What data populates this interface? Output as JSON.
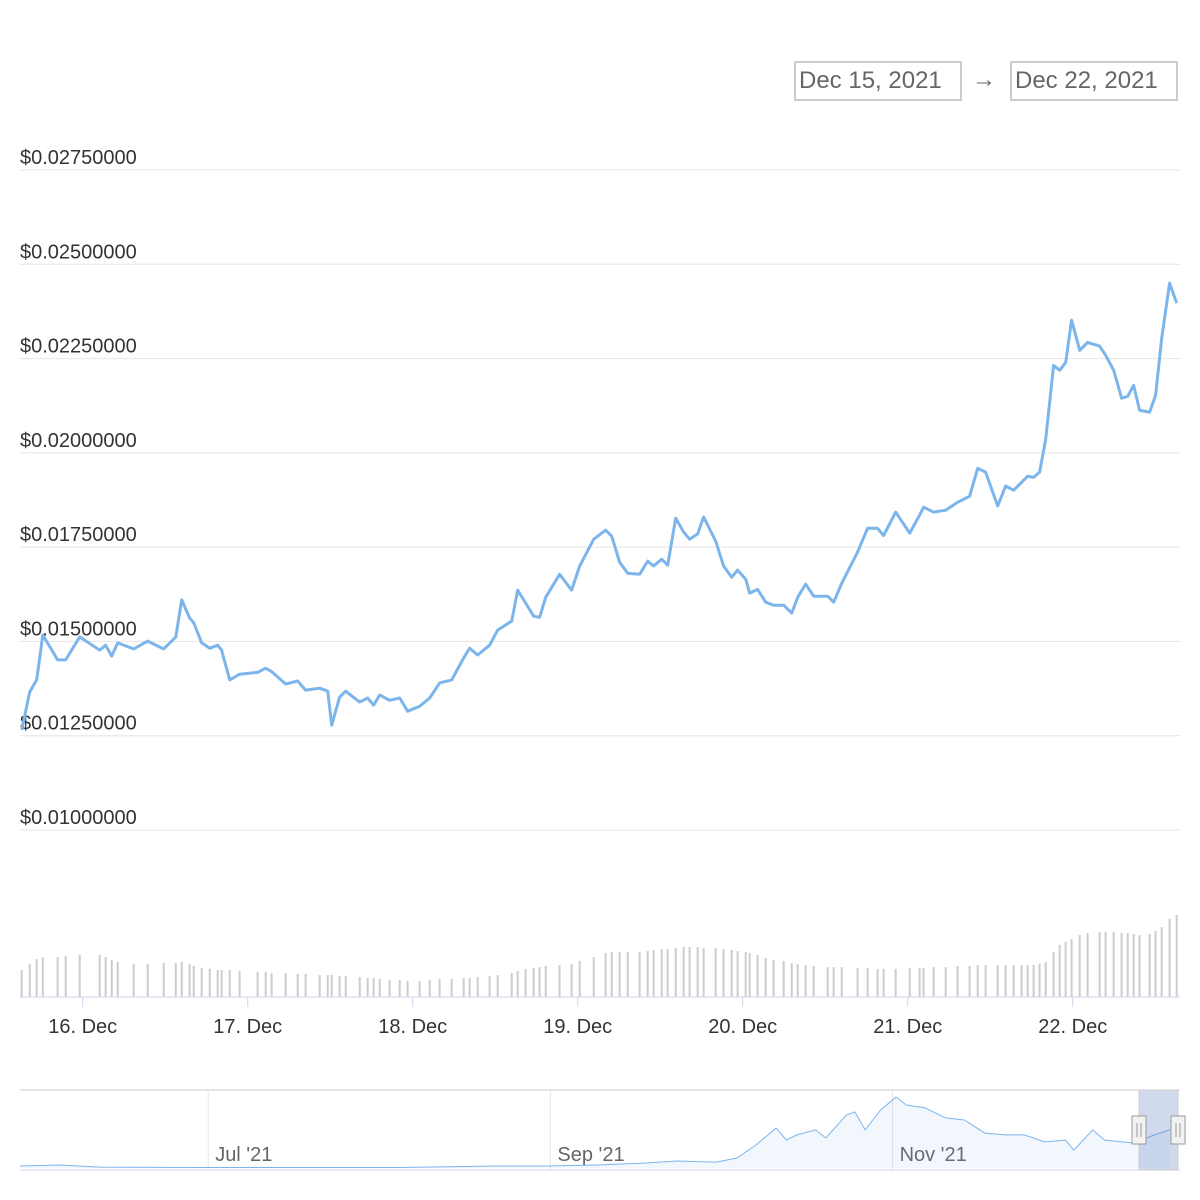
{
  "range_selector": {
    "from": "Dec 15, 2021",
    "arrow": "→",
    "to": "Dec 22, 2021"
  },
  "chart_data": [
    {
      "type": "line",
      "x": [
        15.63,
        15.679,
        15.721,
        15.758,
        15.848,
        15.897,
        15.982,
        16.103,
        16.139,
        16.176,
        16.212,
        16.309,
        16.394,
        16.491,
        16.564,
        16.6,
        16.648,
        16.673,
        16.721,
        16.77,
        16.818,
        16.842,
        16.891,
        16.951,
        17.06,
        17.109,
        17.145,
        17.23,
        17.303,
        17.351,
        17.436,
        17.485,
        17.509,
        17.557,
        17.594,
        17.679,
        17.727,
        17.763,
        17.8,
        17.86,
        17.921,
        17.969,
        18.042,
        18.103,
        18.163,
        18.236,
        18.309,
        18.345,
        18.394,
        18.466,
        18.515,
        18.6,
        18.636,
        18.684,
        18.733,
        18.769,
        18.806,
        18.89,
        18.963,
        19.012,
        19.097,
        19.169,
        19.206,
        19.254,
        19.303,
        19.375,
        19.424,
        19.46,
        19.509,
        19.545,
        19.594,
        19.642,
        19.678,
        19.727,
        19.763,
        19.836,
        19.884,
        19.933,
        19.969,
        20.018,
        20.042,
        20.09,
        20.139,
        20.187,
        20.248,
        20.297,
        20.333,
        20.381,
        20.43,
        20.515,
        20.551,
        20.6,
        20.696,
        20.757,
        20.817,
        20.854,
        20.927,
        21.012,
        21.072,
        21.096,
        21.157,
        21.23,
        21.302,
        21.375,
        21.424,
        21.472,
        21.545,
        21.593,
        21.642,
        21.69,
        21.727,
        21.763,
        21.799,
        21.836,
        21.884,
        21.921,
        21.957,
        21.993,
        22.042,
        22.09,
        22.163,
        22.199,
        22.248,
        22.296,
        22.333,
        22.369,
        22.405,
        22.466,
        22.502,
        22.539,
        22.587,
        22.63
      ],
      "series": [
        {
          "color": "#7cb5ec",
          "values": [
            0.01265,
            0.01366,
            0.01398,
            0.01517,
            0.01451,
            0.01451,
            0.01512,
            0.01477,
            0.0149,
            0.01461,
            0.01496,
            0.0148,
            0.01501,
            0.0148,
            0.01512,
            0.0161,
            0.01562,
            0.01549,
            0.01496,
            0.01482,
            0.0149,
            0.01477,
            0.01398,
            0.01413,
            0.01418,
            0.01429,
            0.0142,
            0.01387,
            0.01395,
            0.01371,
            0.01376,
            0.01368,
            0.01278,
            0.01352,
            0.01368,
            0.01339,
            0.0135,
            0.01331,
            0.01358,
            0.01344,
            0.0135,
            0.01315,
            0.01328,
            0.0135,
            0.0139,
            0.01398,
            0.01456,
            0.01482,
            0.01464,
            0.0149,
            0.0153,
            0.01554,
            0.01636,
            0.01602,
            0.01567,
            0.01564,
            0.01617,
            0.01678,
            0.01636,
            0.017,
            0.01771,
            0.01795,
            0.01779,
            0.0171,
            0.01681,
            0.01678,
            0.01713,
            0.017,
            0.01718,
            0.01702,
            0.01827,
            0.0179,
            0.01771,
            0.01785,
            0.0183,
            0.01766,
            0.017,
            0.0167,
            0.01689,
            0.01665,
            0.01628,
            0.01638,
            0.01604,
            0.01596,
            0.01596,
            0.01575,
            0.01617,
            0.01652,
            0.0162,
            0.0162,
            0.01604,
            0.01654,
            0.01737,
            0.018,
            0.018,
            0.01781,
            0.01843,
            0.01787,
            0.01835,
            0.01856,
            0.01843,
            0.01848,
            0.01869,
            0.01885,
            0.01959,
            0.01949,
            0.01859,
            0.01912,
            0.01901,
            0.01922,
            0.01938,
            0.01935,
            0.01949,
            0.02036,
            0.02232,
            0.02219,
            0.0224,
            0.02352,
            0.02272,
            0.02293,
            0.02283,
            0.02259,
            0.02219,
            0.02145,
            0.0215,
            0.02179,
            0.02113,
            0.02108,
            0.02153,
            0.02304,
            0.0245,
            0.02397
          ]
        },
        {
          "type": "column",
          "axis": "y2",
          "color": "#cccccc",
          "values": [
            27,
            33,
            38,
            40,
            40,
            41,
            42,
            42,
            40,
            37,
            35,
            33,
            33,
            34,
            34,
            35,
            33,
            31,
            29,
            28,
            27,
            27,
            27,
            26,
            25,
            25,
            24,
            24,
            23,
            23,
            22,
            22,
            22,
            21,
            21,
            20,
            19,
            19,
            18,
            17,
            17,
            16,
            16,
            17,
            18,
            18,
            19,
            19,
            20,
            21,
            22,
            24,
            26,
            28,
            29,
            30,
            31,
            32,
            33,
            36,
            40,
            44,
            45,
            45,
            45,
            45,
            46,
            47,
            48,
            48,
            49,
            50,
            50,
            50,
            49,
            49,
            48,
            47,
            46,
            45,
            44,
            42,
            39,
            37,
            36,
            34,
            33,
            32,
            31,
            30,
            30,
            30,
            29,
            29,
            28,
            28,
            28,
            29,
            29,
            29,
            30,
            30,
            31,
            31,
            32,
            32,
            32,
            32,
            32,
            32,
            32,
            32,
            33,
            35,
            45,
            52,
            55,
            58,
            62,
            64,
            65,
            65,
            65,
            64,
            64,
            63,
            62,
            63,
            66,
            70,
            78,
            82
          ]
        }
      ],
      "xlim": [
        15.62,
        22.65
      ],
      "xticks": [
        {
          "value": 16,
          "label": "16. Dec"
        },
        {
          "value": 17,
          "label": "17. Dec"
        },
        {
          "value": 18,
          "label": "18. Dec"
        },
        {
          "value": 19,
          "label": "19. Dec"
        },
        {
          "value": 20,
          "label": "20. Dec"
        },
        {
          "value": 21,
          "label": "21. Dec"
        },
        {
          "value": 22,
          "label": "22. Dec"
        }
      ],
      "ylim": [
        0.01,
        0.0275
      ],
      "yticks": [
        {
          "value": 0.0275,
          "label": "$0.02750000"
        },
        {
          "value": 0.025,
          "label": "$0.02500000"
        },
        {
          "value": 0.0225,
          "label": "$0.02250000"
        },
        {
          "value": 0.02,
          "label": "$0.02000000"
        },
        {
          "value": 0.0175,
          "label": "$0.01750000"
        },
        {
          "value": 0.015,
          "label": "$0.01500000"
        },
        {
          "value": 0.0125,
          "label": "$0.01250000"
        },
        {
          "value": 0.01,
          "label": "$0.01000000"
        }
      ],
      "y2lim": [
        0,
        90
      ],
      "grid": true
    },
    {
      "type": "area",
      "x": [
        5.9,
        6.13,
        6.37,
        6.95,
        8.11,
        8.69,
        8.98,
        9.27,
        9.56,
        9.74,
        9.97,
        10.09,
        10.2,
        10.32,
        10.38,
        10.44,
        10.55,
        10.61,
        10.73,
        10.78,
        10.84,
        10.93,
        11.02,
        11.08,
        11.19,
        11.31,
        11.42,
        11.54,
        11.66,
        11.77,
        11.89,
        12.01,
        12.06,
        12.17,
        12.24,
        12.41,
        12.53,
        12.62
      ],
      "series": [
        {
          "color": "#7cb5ec",
          "values": [
            0.0013,
            0.0019,
            0.0006,
            0.0003,
            0.0003,
            0.0013,
            0.0013,
            0.0019,
            0.0032,
            0.0045,
            0.0038,
            0.0064,
            0.0147,
            0.0256,
            0.0179,
            0.0212,
            0.0244,
            0.0192,
            0.034,
            0.0359,
            0.0244,
            0.0372,
            0.0455,
            0.0404,
            0.0385,
            0.0321,
            0.0308,
            0.0224,
            0.0212,
            0.0212,
            0.0167,
            0.0179,
            0.0115,
            0.0244,
            0.0179,
            0.016,
            0.0212,
            0.0244
          ]
        }
      ],
      "xlim": [
        5.9,
        12.68
      ],
      "xticks": [
        {
          "value": 7,
          "label": "Jul '21"
        },
        {
          "value": 9,
          "label": "Sep '21"
        },
        {
          "value": 11,
          "label": "Nov '21"
        }
      ],
      "ylim": [
        0,
        0.05
      ],
      "grid": true
    }
  ]
}
